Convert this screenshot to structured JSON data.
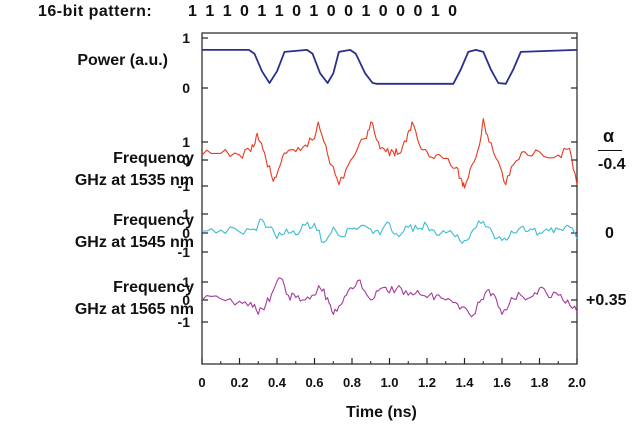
{
  "pattern": {
    "label": "16-bit pattern:",
    "bits": "1 1 1 0 1 1 0 1 0 0 1 0 0 0 1 0"
  },
  "chart_data": {
    "type": "line",
    "xlabel": "Time (ns)",
    "xlim": [
      0,
      2.0
    ],
    "x_ticks": [
      "0",
      "0.2",
      "0.4",
      "0.6",
      "0.8",
      "1.0",
      "1.2",
      "1.4",
      "1.6",
      "1.8",
      "2.0"
    ],
    "alpha_header": "α",
    "panels": [
      {
        "name": "Power (a.u.)",
        "label_lines": [
          "Power (a.u.)"
        ],
        "color": "#2a2f8c",
        "ticks": [
          "1",
          "0"
        ],
        "ylim": [
          0,
          1
        ],
        "alpha": "",
        "x": [
          0,
          0.25,
          0.28,
          0.32,
          0.36,
          0.4,
          0.44,
          0.56,
          0.59,
          0.63,
          0.67,
          0.7,
          0.73,
          0.79,
          0.82,
          0.87,
          0.91,
          0.93,
          0.97,
          1.03,
          1.08,
          1.13,
          1.34,
          1.38,
          1.42,
          1.46,
          1.5,
          1.54,
          1.58,
          1.62,
          1.66,
          1.7,
          2.0
        ],
        "y": [
          0.9,
          0.9,
          0.8,
          0.35,
          0.05,
          0.35,
          0.85,
          0.9,
          0.8,
          0.3,
          0.05,
          0.3,
          0.85,
          0.9,
          0.8,
          0.3,
          0.05,
          0.03,
          0.03,
          0.03,
          0.03,
          0.03,
          0.03,
          0.4,
          0.85,
          0.9,
          0.85,
          0.4,
          0.05,
          0.03,
          0.4,
          0.85,
          0.9
        ]
      },
      {
        "name": "Frequency GHz at 1535 nm",
        "label_lines": [
          "Frequency",
          "GHz at 1535 nm"
        ],
        "color": "#e8391e",
        "ticks": [
          "1",
          "0",
          "-1"
        ],
        "ylim": [
          -1,
          1
        ],
        "alpha": "-0.4",
        "x": [
          0,
          0.1,
          0.2,
          0.26,
          0.29,
          0.31,
          0.34,
          0.38,
          0.41,
          0.45,
          0.5,
          0.55,
          0.6,
          0.62,
          0.66,
          0.69,
          0.73,
          0.78,
          0.83,
          0.87,
          0.9,
          0.94,
          0.98,
          1.02,
          1.05,
          1.09,
          1.12,
          1.16,
          1.2,
          1.25,
          1.3,
          1.35,
          1.38,
          1.4,
          1.44,
          1.48,
          1.5,
          1.53,
          1.58,
          1.62,
          1.66,
          1.72,
          1.8,
          1.9,
          1.96,
          2.0
        ],
        "y": [
          0,
          0.05,
          0.0,
          0.1,
          0.6,
          0.4,
          -0.1,
          -0.8,
          -0.4,
          0.05,
          0.1,
          0.3,
          0.5,
          1.0,
          0.3,
          -0.3,
          -0.9,
          -0.3,
          0.2,
          0.5,
          1.0,
          0.4,
          0.1,
          0.1,
          0.05,
          0.4,
          1.0,
          0.3,
          0.1,
          0.0,
          -0.1,
          -0.4,
          -0.7,
          -1.0,
          -0.3,
          0.3,
          1.1,
          0.4,
          -0.2,
          -0.9,
          -0.3,
          0.1,
          0.1,
          0.0,
          0.2,
          -0.9
        ]
      },
      {
        "name": "Frequency GHz at 1545 nm",
        "label_lines": [
          "Frequency",
          "GHz at 1545 nm"
        ],
        "color": "#3cbcd2",
        "ticks": [
          "1",
          "0",
          "-1"
        ],
        "ylim": [
          -1,
          1
        ],
        "alpha": "0",
        "x": [
          0,
          0.1,
          0.2,
          0.28,
          0.32,
          0.36,
          0.4,
          0.45,
          0.5,
          0.55,
          0.6,
          0.65,
          0.7,
          0.75,
          0.8,
          0.85,
          0.9,
          0.95,
          1.0,
          1.05,
          1.1,
          1.15,
          1.2,
          1.25,
          1.3,
          1.35,
          1.4,
          1.45,
          1.5,
          1.55,
          1.6,
          1.65,
          1.7,
          1.75,
          1.8,
          1.85,
          1.9,
          1.95,
          2.0
        ],
        "y": [
          0,
          0.05,
          -0.05,
          0.1,
          0.6,
          0.2,
          -0.4,
          0.1,
          -0.2,
          0.3,
          0.4,
          -0.6,
          0.2,
          -0.3,
          0.1,
          0.3,
          0.1,
          -0.2,
          0.4,
          -0.3,
          0.2,
          0.1,
          0.3,
          -0.2,
          -0.1,
          -0.3,
          -0.5,
          0.1,
          0.5,
          -0.1,
          -0.5,
          0.0,
          0.2,
          0.1,
          -0.1,
          0.0,
          0.1,
          0.3,
          -0.4
        ]
      },
      {
        "name": "Frequency GHz at 1565 nm",
        "label_lines": [
          "Frequency",
          "GHz at 1565 nm"
        ],
        "color": "#a43c9c",
        "ticks": [
          "1",
          "0",
          "-1"
        ],
        "ylim": [
          -1,
          1
        ],
        "alpha": "+0.35",
        "x": [
          0,
          0.1,
          0.2,
          0.26,
          0.3,
          0.34,
          0.38,
          0.42,
          0.46,
          0.5,
          0.55,
          0.6,
          0.63,
          0.67,
          0.7,
          0.74,
          0.78,
          0.83,
          0.88,
          0.92,
          0.96,
          1.0,
          1.05,
          1.1,
          1.15,
          1.2,
          1.25,
          1.3,
          1.35,
          1.4,
          1.45,
          1.48,
          1.52,
          1.56,
          1.6,
          1.65,
          1.7,
          1.75,
          1.8,
          1.85,
          1.9,
          1.95,
          2.0
        ],
        "y": [
          0,
          0.05,
          -0.05,
          -0.1,
          -0.6,
          -0.2,
          0.4,
          0.9,
          0.2,
          0.1,
          0.0,
          0.2,
          0.5,
          0.1,
          -0.6,
          -0.2,
          0.4,
          0.8,
          0.2,
          0.1,
          0.5,
          0.3,
          0.6,
          0.2,
          0.4,
          0.1,
          0.2,
          0.0,
          -0.1,
          -0.3,
          -0.6,
          -0.1,
          0.4,
          0.2,
          -0.6,
          0.1,
          0.2,
          0.1,
          0.5,
          0.1,
          0.2,
          0.0,
          -0.5
        ]
      }
    ]
  }
}
